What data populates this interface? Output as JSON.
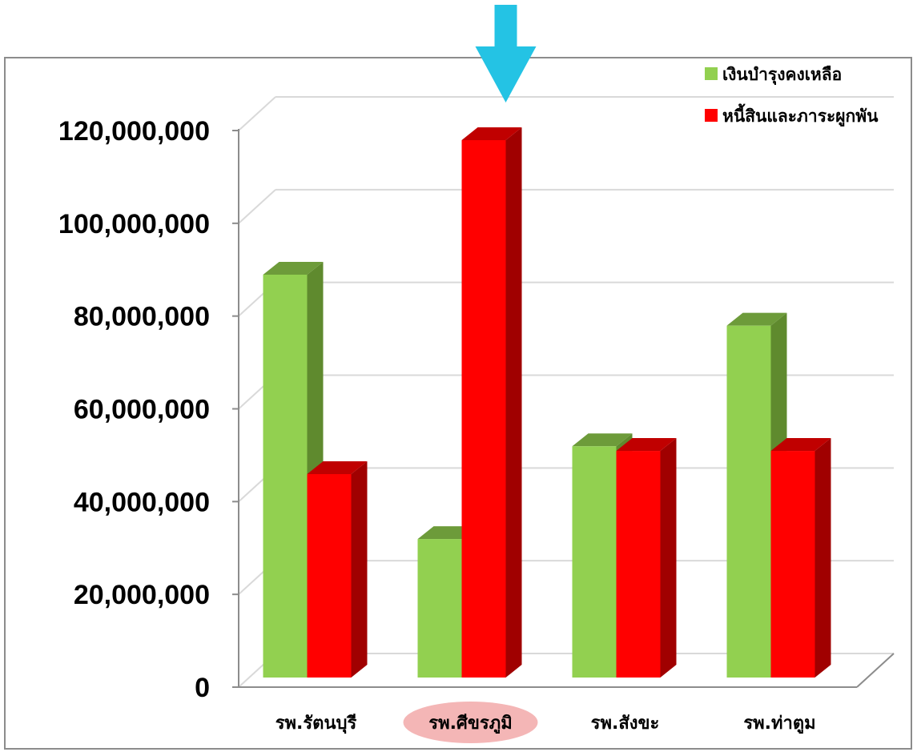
{
  "chart_data": {
    "type": "bar",
    "title": "",
    "xlabel": "",
    "ylabel": "",
    "categories": [
      "รพ.รัตนบุรี",
      "รพ.ศีขรภูมิ",
      "รพ.สังขะ",
      "รพ.ท่าตูม"
    ],
    "series": [
      {
        "name": "เงินบำรุงคงเหลือ",
        "values": [
          91000000,
          34000000,
          54000000,
          80000000
        ],
        "color": "#92d050",
        "side_color": "#5f8a2e",
        "top_color": "#6d9b3a"
      },
      {
        "name": "หนี้สินและภาระผูกพัน",
        "values": [
          48000000,
          120000000,
          53000000,
          53000000
        ],
        "color": "#ff0000",
        "side_color": "#a00000",
        "top_color": "#c00000"
      }
    ],
    "ylim": [
      0,
      120000000
    ],
    "yticks": [
      0,
      20000000,
      40000000,
      60000000,
      80000000,
      100000000,
      120000000
    ],
    "ytick_labels": [
      "0",
      "20,000,000",
      "40,000,000",
      "60,000,000",
      "80,000,000",
      "100,000,000",
      "120,000,000"
    ],
    "grid": true,
    "legend_position": "top-right",
    "highlighted_category": "รพ.ศีขรภูมิ",
    "highlight_color": "#f4b6b6",
    "arrow_color": "#24c3e4",
    "arrow_target": "รพ.ศีขรภูมิ"
  }
}
